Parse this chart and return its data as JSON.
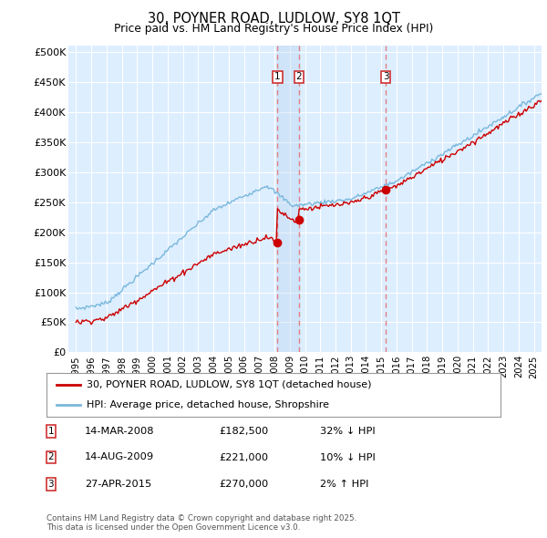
{
  "title_line1": "30, POYNER ROAD, LUDLOW, SY8 1QT",
  "title_line2": "Price paid vs. HM Land Registry's House Price Index (HPI)",
  "ylabel_ticks": [
    "£0",
    "£50K",
    "£100K",
    "£150K",
    "£200K",
    "£250K",
    "£300K",
    "£350K",
    "£400K",
    "£450K",
    "£500K"
  ],
  "ytick_values": [
    0,
    50000,
    100000,
    150000,
    200000,
    250000,
    300000,
    350000,
    400000,
    450000,
    500000
  ],
  "ylim": [
    0,
    510000
  ],
  "xlim_start": 1994.5,
  "xlim_end": 2025.5,
  "hpi_color": "#7ab8dc",
  "price_color": "#cc0000",
  "vline_color": "#e08080",
  "vfill_color": "#ddeeff",
  "background_color": "#ddeeff",
  "grid_color": "#ffffff",
  "sale_markers": [
    {
      "year": 2008.2,
      "price": 182500,
      "label": "1"
    },
    {
      "year": 2009.6,
      "price": 221000,
      "label": "2"
    },
    {
      "year": 2015.3,
      "price": 270000,
      "label": "3"
    }
  ],
  "legend_entries": [
    {
      "label": "30, POYNER ROAD, LUDLOW, SY8 1QT (detached house)",
      "color": "#cc0000"
    },
    {
      "label": "HPI: Average price, detached house, Shropshire",
      "color": "#7ab8dc"
    }
  ],
  "table_rows": [
    {
      "num": "1",
      "date": "14-MAR-2008",
      "price": "£182,500",
      "change": "32% ↓ HPI"
    },
    {
      "num": "2",
      "date": "14-AUG-2009",
      "price": "£221,000",
      "change": "10% ↓ HPI"
    },
    {
      "num": "3",
      "date": "27-APR-2015",
      "price": "£270,000",
      "change": "2% ↑ HPI"
    }
  ],
  "footnote": "Contains HM Land Registry data © Crown copyright and database right 2025.\nThis data is licensed under the Open Government Licence v3.0.",
  "sale_years": [
    2008.2,
    2009.6,
    2015.3
  ],
  "sale_prices": [
    182500,
    221000,
    270000
  ]
}
